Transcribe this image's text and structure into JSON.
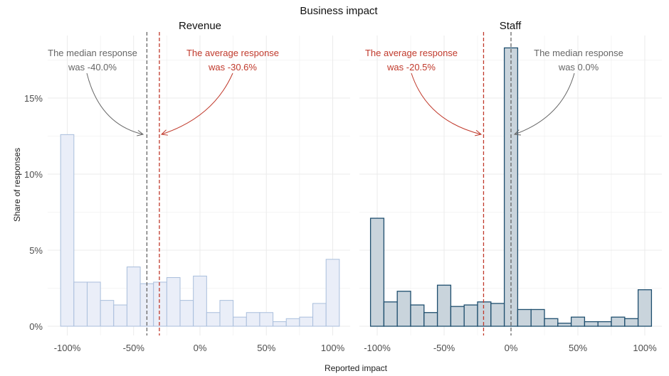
{
  "figure": {
    "title": "Business impact",
    "xlabel": "Reported impact",
    "ylabel": "Share of responses"
  },
  "colors": {
    "grid": "#ebebeb",
    "text": "#4d4d4d",
    "revenue_fill": "#eaeef8",
    "revenue_stroke": "#a9bedc",
    "staff_fill": "#c9d4dc",
    "staff_stroke": "#1e4e6e",
    "median_line": "#666666",
    "average_line": "#c0392b"
  },
  "chart_data": [
    {
      "type": "bar",
      "title": "Revenue",
      "xlim": [
        -100,
        100
      ],
      "ylim": [
        0,
        18.5
      ],
      "x_ticks": [
        "-100%",
        "-50%",
        "0%",
        "50%",
        "100%"
      ],
      "x_tick_values": [
        -100,
        -50,
        0,
        50,
        100
      ],
      "y_ticks": [
        "0%",
        "5%",
        "10%",
        "15%"
      ],
      "y_tick_values": [
        0,
        5,
        10,
        15
      ],
      "bin_centers": [
        -100,
        -90,
        -80,
        -70,
        -60,
        -50,
        -40,
        -30,
        -20,
        -10,
        0,
        10,
        20,
        30,
        40,
        50,
        60,
        70,
        80,
        90,
        100
      ],
      "values": [
        12.6,
        2.9,
        2.9,
        1.7,
        1.4,
        3.9,
        2.8,
        2.9,
        3.2,
        1.7,
        3.3,
        0.9,
        1.7,
        0.6,
        0.9,
        0.9,
        0.3,
        0.5,
        0.6,
        1.5,
        4.4
      ],
      "median": -40.0,
      "average": -30.6,
      "annotations": {
        "median": [
          "The median response",
          "was -40.0%"
        ],
        "average": [
          "The average response",
          "was -30.6%"
        ]
      }
    },
    {
      "type": "bar",
      "title": "Staff",
      "xlim": [
        -100,
        100
      ],
      "ylim": [
        0,
        18.5
      ],
      "x_ticks": [
        "-100%",
        "-50%",
        "0%",
        "50%",
        "100%"
      ],
      "x_tick_values": [
        -100,
        -50,
        0,
        50,
        100
      ],
      "y_ticks": [],
      "y_tick_values": [
        0,
        5,
        10,
        15
      ],
      "bin_centers": [
        -100,
        -90,
        -80,
        -70,
        -60,
        -50,
        -40,
        -30,
        -20,
        -10,
        0,
        10,
        20,
        30,
        40,
        50,
        60,
        70,
        80,
        90,
        100
      ],
      "values": [
        7.1,
        1.6,
        2.3,
        1.4,
        0.9,
        2.7,
        1.3,
        1.4,
        1.6,
        1.5,
        18.3,
        1.1,
        1.1,
        0.5,
        0.2,
        0.6,
        0.3,
        0.3,
        0.6,
        0.5,
        2.4
      ],
      "median": 0.0,
      "average": -20.5,
      "annotations": {
        "median": [
          "The median response",
          "was 0.0%"
        ],
        "average": [
          "The average response",
          "was -20.5%"
        ]
      }
    }
  ]
}
